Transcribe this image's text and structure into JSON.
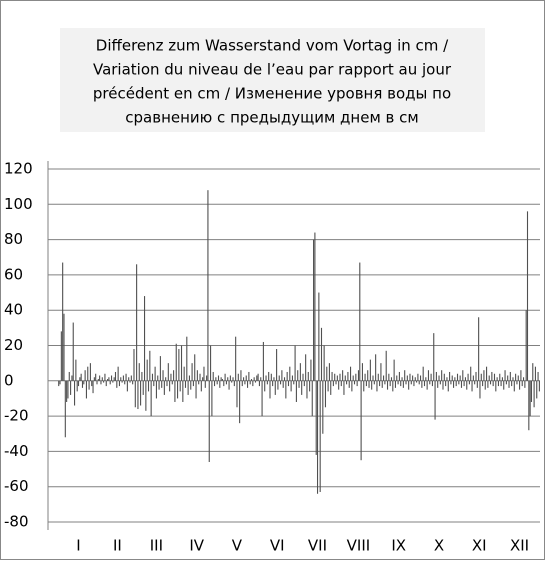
{
  "chart_data": {
    "type": "bar",
    "title": [
      "Differenz zum Wasserstand vom Vortag in cm /",
      "Variation du niveau de l’eau par rapport au jour",
      "précédent en cm / Изменение уровня воды по",
      "сравнению с предыдущим днем в см"
    ],
    "color": "#505050",
    "ylim": [
      -80,
      120
    ],
    "yticks": [
      -80,
      -60,
      -40,
      -20,
      0,
      20,
      40,
      60,
      80,
      100,
      120
    ],
    "grid": true,
    "months": [
      {
        "label": "I",
        "values": [
          -3,
          -2,
          28,
          67,
          38,
          -32,
          -12,
          -10,
          5,
          -8,
          3,
          33,
          -14,
          12,
          -6,
          -3,
          2,
          4,
          -4,
          -2,
          6,
          -10,
          8,
          -5,
          10,
          -3,
          -7,
          2,
          4,
          -2,
          1
        ]
      },
      {
        "label": "II",
        "values": [
          3,
          -2,
          2,
          -1,
          4,
          -3,
          1,
          2,
          -2,
          3,
          -1,
          2,
          5,
          -4,
          8,
          -3,
          2,
          -1,
          3,
          -2,
          4,
          -6,
          2,
          -1,
          3,
          -2,
          18,
          -15
        ]
      },
      {
        "label": "III",
        "values": [
          66,
          -16,
          10,
          -14,
          5,
          -8,
          48,
          -17,
          12,
          -6,
          17,
          -20,
          4,
          -3,
          8,
          -10,
          3,
          -5,
          14,
          -4,
          6,
          -8,
          2,
          -3,
          10,
          -6,
          4,
          -2,
          6,
          -12,
          21
        ]
      },
      {
        "label": "IV",
        "values": [
          -10,
          18,
          -6,
          20,
          -12,
          8,
          -4,
          25,
          -8,
          3,
          -5,
          10,
          -3,
          15,
          -10,
          6,
          -2,
          4,
          -6,
          2,
          8,
          -4,
          3,
          108,
          -46,
          20,
          -20,
          5,
          -3,
          2
        ]
      },
      {
        "label": "V",
        "values": [
          -2,
          3,
          -4,
          2,
          1,
          -3,
          4,
          -2,
          2,
          -5,
          3,
          -1,
          2,
          -3,
          25,
          -15,
          4,
          -24,
          6,
          -3,
          2,
          -2,
          3,
          -4,
          5,
          -2,
          1,
          -3,
          2,
          -1,
          3
        ]
      },
      {
        "label": "VI",
        "values": [
          4,
          -3,
          2,
          -20,
          22,
          -6,
          3,
          -2,
          5,
          -10,
          4,
          -3,
          2,
          -8,
          18,
          -5,
          3,
          -2,
          6,
          -4,
          2,
          -10,
          5,
          -3,
          8,
          -6,
          3,
          -2,
          20,
          -12
        ]
      },
      {
        "label": "VII",
        "values": [
          6,
          -4,
          10,
          -8,
          4,
          -3,
          15,
          -10,
          5,
          -6,
          12,
          -20,
          80,
          84,
          -42,
          -64,
          50,
          -63,
          30,
          -30,
          20,
          -15,
          8,
          -6,
          10,
          -8,
          5,
          -3,
          4,
          -2,
          3
        ]
      },
      {
        "label": "VIII",
        "values": [
          -5,
          4,
          -3,
          6,
          -8,
          3,
          -2,
          5,
          -4,
          8,
          -6,
          3,
          -2,
          4,
          -3,
          6,
          67,
          -45,
          10,
          -6,
          4,
          -3,
          6,
          -4,
          12,
          -5,
          3,
          -2,
          15,
          -6,
          4
        ]
      },
      {
        "label": "IX",
        "values": [
          -3,
          10,
          -4,
          3,
          -2,
          17,
          -5,
          4,
          -3,
          2,
          -6,
          12,
          -4,
          3,
          -2,
          5,
          -3,
          2,
          -4,
          6,
          -2,
          3,
          -5,
          4,
          -2,
          3,
          -3,
          2,
          -1,
          4
        ]
      },
      {
        "label": "X",
        "values": [
          -2,
          3,
          -4,
          8,
          -3,
          2,
          -5,
          6,
          -2,
          4,
          -3,
          27,
          -22,
          5,
          -4,
          3,
          -2,
          6,
          -5,
          4,
          -3,
          2,
          -6,
          5,
          -2,
          3,
          -4,
          2,
          -3,
          4,
          -2
        ]
      },
      {
        "label": "XI",
        "values": [
          3,
          -4,
          6,
          -3,
          2,
          -5,
          4,
          -2,
          8,
          -6,
          3,
          -2,
          5,
          -4,
          36,
          -10,
          4,
          -3,
          6,
          -5,
          8,
          -4,
          3,
          -2,
          5,
          -3,
          4,
          -6,
          2,
          -3
        ]
      },
      {
        "label": "XII",
        "values": [
          4,
          -3,
          2,
          -5,
          6,
          -2,
          3,
          -4,
          5,
          -3,
          2,
          -6,
          4,
          -2,
          3,
          -5,
          6,
          -3,
          2,
          -4,
          40,
          96,
          -28,
          -20,
          -12,
          10,
          -15,
          8,
          -10,
          5,
          -6
        ]
      }
    ]
  }
}
